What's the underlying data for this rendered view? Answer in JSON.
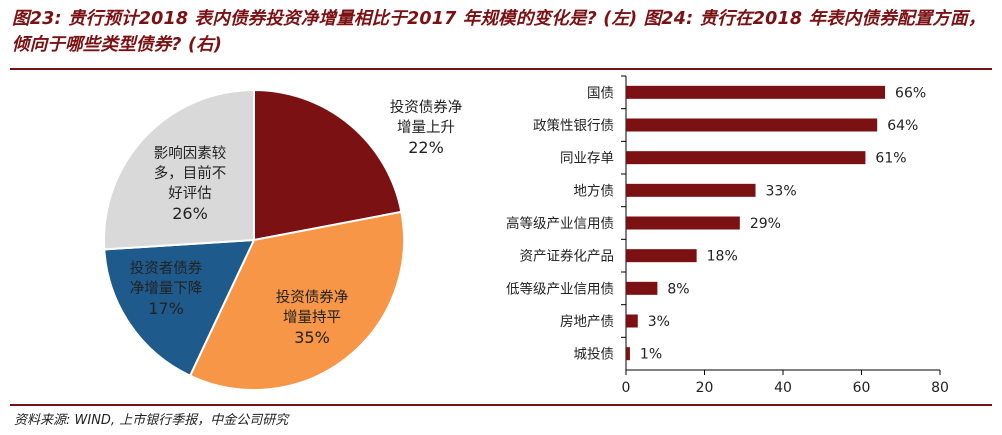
{
  "title": "图23: 贵行预计2018 表内债券投资净增量相比于2017 年规模的变化是? (左) 图24: 贵行在2018 年表内债券配置方面，倾向于哪些类型债券? (右)",
  "source": "资料来源: WIND, 上市银行季报，中金公司研究",
  "chart_data": [
    {
      "type": "pie",
      "slices": [
        {
          "label": "投资债券净增量上升",
          "lines": [
            "投资债券净",
            "增量上升"
          ],
          "value": 22,
          "pct_label": "22%",
          "color": "#7b1113"
        },
        {
          "label": "投资债券净增量持平",
          "lines": [
            "投资债券净",
            "增量持平"
          ],
          "value": 35,
          "pct_label": "35%",
          "color": "#f79646"
        },
        {
          "label": "投资者债券净增量下降",
          "lines": [
            "投资者债券",
            "净增量下降"
          ],
          "value": 17,
          "pct_label": "17%",
          "color": "#1f5a8c"
        },
        {
          "label": "影响因素较多，目前不好评估",
          "lines": [
            "影响因素较",
            "多，目前不",
            "好评估"
          ],
          "value": 26,
          "pct_label": "26%",
          "color": "#d9d9d9"
        }
      ]
    },
    {
      "type": "bar",
      "orientation": "horizontal",
      "categories": [
        "国债",
        "政策性银行债",
        "同业存单",
        "地方债",
        "高等级产业信用债",
        "资产证券化产品",
        "低等级产业信用债",
        "房地产债",
        "城投债"
      ],
      "values": [
        66,
        64,
        61,
        33,
        29,
        18,
        8,
        3,
        1
      ],
      "value_labels": [
        "66%",
        "64%",
        "61%",
        "33%",
        "29%",
        "18%",
        "8%",
        "3%",
        "1%"
      ],
      "xlim": [
        0,
        80
      ],
      "xticks": [
        "0",
        "20",
        "40",
        "60",
        "80"
      ],
      "bar_color": "#7b1113"
    }
  ]
}
